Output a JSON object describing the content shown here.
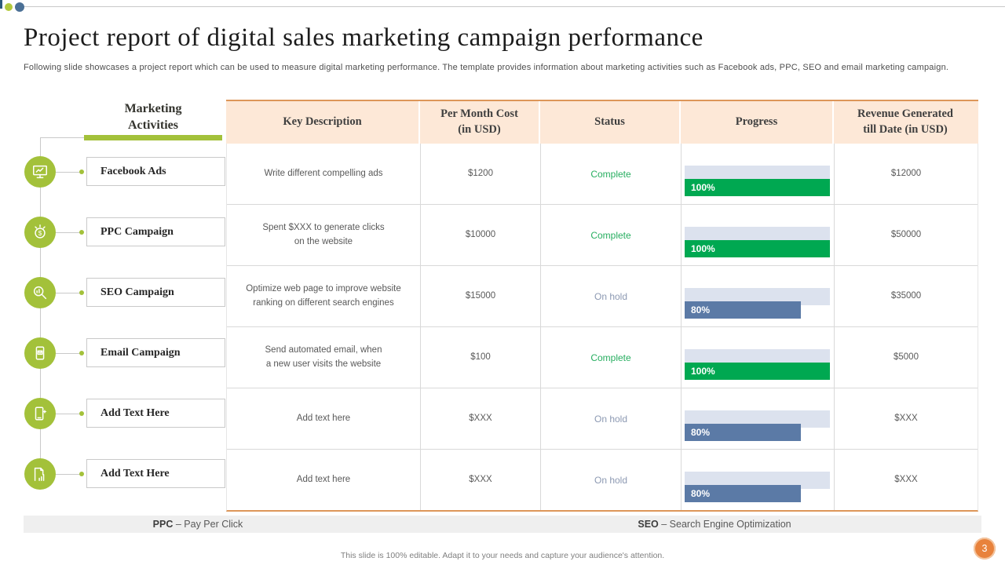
{
  "slide": {
    "title": "Project report of digital sales marketing campaign performance",
    "subtitle": "Following slide showcases a project report which can be used to measure digital marketing performance. The template provides information about marketing activities such as Facebook ads, PPC,  SEO and email marketing campaign.",
    "footer_note": "This slide is 100% editable.  Adapt it to your needs and capture your audience's attention.",
    "page_number": "3"
  },
  "left_panel": {
    "header": "Marketing\nActivities",
    "items": [
      {
        "label": "Facebook Ads",
        "icon": "monitor-icon"
      },
      {
        "label": "PPC  Campaign",
        "icon": "coin-hand-icon"
      },
      {
        "label": "SEO Campaign",
        "icon": "seo-search-icon"
      },
      {
        "label": "Email  Campaign",
        "icon": "email-icon"
      },
      {
        "label": "Add  Text Here",
        "icon": "mobile-promo-icon"
      },
      {
        "label": "Add  Text Here",
        "icon": "report-icon"
      }
    ]
  },
  "table": {
    "headers": [
      "Key Description",
      "Per Month Cost\n(in USD)",
      "Status",
      "Progress",
      "Revenue Generated\ntill  Date (in USD)"
    ],
    "rows": [
      {
        "description": "Write  different compelling ads",
        "cost": "$1200",
        "status": "Complete",
        "status_type": "complete",
        "progress": 100,
        "progress_label": "100%",
        "revenue": "$12000"
      },
      {
        "description": "Spent $XXX  to generate clicks\non the website",
        "cost": "$10000",
        "status": "Complete",
        "status_type": "complete",
        "progress": 100,
        "progress_label": "100%",
        "revenue": "$50000"
      },
      {
        "description": "Optimize web page to improve website\nranking on different search engines",
        "cost": "$15000",
        "status": "On hold",
        "status_type": "onhold",
        "progress": 80,
        "progress_label": "80%",
        "revenue": "$35000"
      },
      {
        "description": "Send automated email, when\na new user visits the website",
        "cost": "$100",
        "status": "Complete",
        "status_type": "complete",
        "progress": 100,
        "progress_label": "100%",
        "revenue": "$5000"
      },
      {
        "description": "Add text here",
        "cost": "$XXX",
        "status": "On hold",
        "status_type": "onhold",
        "progress": 80,
        "progress_label": "80%",
        "revenue": "$XXX"
      },
      {
        "description": "Add text here",
        "cost": "$XXX",
        "status": "On hold",
        "status_type": "onhold",
        "progress": 80,
        "progress_label": "80%",
        "revenue": "$XXX"
      }
    ]
  },
  "legend": [
    {
      "term": "PPC",
      "definition": "– Pay Per Click"
    },
    {
      "term": "SEO",
      "definition": "– Search Engine Optimization"
    }
  ],
  "colors": {
    "accent_green": "#a3c13a",
    "bar_green": "#00a851",
    "bar_blue": "#5b7aa6",
    "bar_track": "#dce2ee",
    "table_header_bg": "#fde8d7",
    "table_accent_orange": "#dd9659",
    "status_complete": "#27ae60",
    "status_on_hold": "#8c99b2",
    "page_badge_orange": "#e8823c"
  }
}
